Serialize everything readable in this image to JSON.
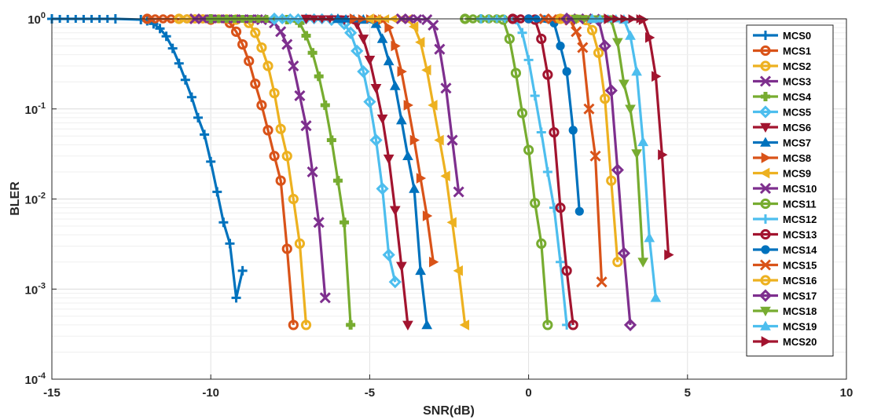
{
  "chart_data": {
    "type": "line",
    "xlabel": "SNR(dB)",
    "ylabel": "BLER",
    "xlim": [
      -15,
      10
    ],
    "ylim": [
      0.0001,
      1
    ],
    "yscale": "log",
    "grid": true,
    "legend_position": "top-right",
    "x_ticks": [
      "-15",
      "-10",
      "-5",
      "0",
      "5",
      "10"
    ],
    "y_ticks": [
      {
        "base": "10",
        "exp": "0"
      },
      {
        "base": "10",
        "exp": "-1"
      },
      {
        "base": "10",
        "exp": "-2"
      },
      {
        "base": "10",
        "exp": "-3"
      },
      {
        "base": "10",
        "exp": "-4"
      }
    ],
    "series": [
      {
        "name": "MCS0",
        "color": "#0072BD",
        "marker": "plus",
        "x": [
          -15,
          -13,
          -12.2,
          -12,
          -11.8,
          -11.6,
          -11.4,
          -11.2,
          -11.0,
          -10.8,
          -10.6,
          -10.4,
          -10.2,
          -10.0,
          -9.8,
          -9.6,
          -9.4,
          -9.2,
          -9.0
        ],
        "y": [
          1,
          1,
          0.98,
          0.95,
          0.88,
          0.78,
          0.64,
          0.47,
          0.32,
          0.21,
          0.135,
          0.08,
          0.052,
          0.026,
          0.012,
          0.0055,
          0.0032,
          0.0008,
          0.0016
        ]
      },
      {
        "name": "MCS1",
        "color": "#D95319",
        "marker": "circle",
        "x": [
          -12,
          -10,
          -9.4,
          -9.2,
          -9.0,
          -8.8,
          -8.6,
          -8.4,
          -8.2,
          -8.0,
          -7.8,
          -7.6,
          -7.4
        ],
        "y": [
          1,
          0.98,
          0.9,
          0.72,
          0.52,
          0.34,
          0.19,
          0.11,
          0.058,
          0.03,
          0.016,
          0.0028,
          0.0004
        ]
      },
      {
        "name": "MCS2",
        "color": "#EDB120",
        "marker": "circle",
        "x": [
          -11,
          -9.2,
          -8.8,
          -8.6,
          -8.4,
          -8.2,
          -8.0,
          -7.8,
          -7.6,
          -7.4,
          -7.2,
          -7.0
        ],
        "y": [
          1,
          0.98,
          0.9,
          0.7,
          0.48,
          0.3,
          0.15,
          0.06,
          0.03,
          0.01,
          0.0032,
          0.0004
        ]
      },
      {
        "name": "MCS3",
        "color": "#7E2F8E",
        "marker": "x",
        "x": [
          -10.5,
          -8.4,
          -8.0,
          -7.8,
          -7.6,
          -7.4,
          -7.2,
          -7.0,
          -6.8,
          -6.6,
          -6.4
        ],
        "y": [
          1,
          0.98,
          0.9,
          0.72,
          0.52,
          0.3,
          0.14,
          0.065,
          0.02,
          0.0055,
          0.0008
        ]
      },
      {
        "name": "MCS4",
        "color": "#77AC30",
        "marker": "plus-bold",
        "x": [
          -10,
          -7.6,
          -7.2,
          -7.0,
          -6.8,
          -6.6,
          -6.4,
          -6.2,
          -6.0,
          -5.8,
          -5.6
        ],
        "y": [
          1,
          0.98,
          0.9,
          0.65,
          0.42,
          0.23,
          0.11,
          0.045,
          0.016,
          0.0055,
          0.0004
        ]
      },
      {
        "name": "MCS5",
        "color": "#4DBEEE",
        "marker": "diamond",
        "x": [
          -8,
          -6.2,
          -5.8,
          -5.6,
          -5.4,
          -5.2,
          -5.0,
          -4.8,
          -4.6,
          -4.4,
          -4.2
        ],
        "y": [
          1,
          0.98,
          0.88,
          0.7,
          0.44,
          0.26,
          0.12,
          0.045,
          0.013,
          0.0024,
          0.0012
        ]
      },
      {
        "name": "MCS6",
        "color": "#A2142F",
        "marker": "triangle-down",
        "x": [
          -7,
          -5.8,
          -5.4,
          -5.2,
          -5.0,
          -4.8,
          -4.6,
          -4.4,
          -4.2,
          -4.0,
          -3.8
        ],
        "y": [
          1,
          0.98,
          0.87,
          0.6,
          0.35,
          0.17,
          0.078,
          0.028,
          0.0075,
          0.0018,
          0.0004
        ]
      },
      {
        "name": "MCS7",
        "color": "#0072BD",
        "marker": "triangle-up",
        "x": [
          -6,
          -5.2,
          -4.8,
          -4.6,
          -4.4,
          -4.2,
          -4.0,
          -3.8,
          -3.6,
          -3.4,
          -3.2
        ],
        "y": [
          1,
          0.98,
          0.88,
          0.6,
          0.34,
          0.18,
          0.075,
          0.03,
          0.013,
          0.0016,
          0.0004
        ]
      },
      {
        "name": "MCS8",
        "color": "#D95319",
        "marker": "triangle-right",
        "x": [
          -5.5,
          -4.6,
          -4.4,
          -4.2,
          -4.0,
          -3.8,
          -3.6,
          -3.4,
          -3.2,
          -3.0
        ],
        "y": [
          1,
          0.98,
          0.8,
          0.5,
          0.26,
          0.11,
          0.045,
          0.017,
          0.0065,
          0.002
        ]
      },
      {
        "name": "MCS9",
        "color": "#EDB120",
        "marker": "triangle-left",
        "x": [
          -5,
          -3.8,
          -3.6,
          -3.4,
          -3.2,
          -3.0,
          -2.8,
          -2.6,
          -2.4,
          -2.2,
          -2.0
        ],
        "y": [
          1,
          0.98,
          0.82,
          0.55,
          0.27,
          0.11,
          0.045,
          0.018,
          0.0055,
          0.0016,
          0.0004
        ]
      },
      {
        "name": "MCS10",
        "color": "#7E2F8E",
        "marker": "x",
        "x": [
          -4,
          -3.2,
          -3.0,
          -2.8,
          -2.6,
          -2.4,
          -2.2
        ],
        "y": [
          1,
          0.98,
          0.85,
          0.46,
          0.17,
          0.045,
          0.012
        ]
      },
      {
        "name": "MCS11",
        "color": "#77AC30",
        "marker": "circle",
        "x": [
          -2,
          -0.8,
          -0.6,
          -0.4,
          -0.2,
          0.0,
          0.2,
          0.4,
          0.6
        ],
        "y": [
          1,
          0.98,
          0.6,
          0.25,
          0.09,
          0.035,
          0.009,
          0.0032,
          0.0004
        ]
      },
      {
        "name": "MCS12",
        "color": "#4DBEEE",
        "marker": "plus",
        "x": [
          -1.5,
          -0.4,
          -0.2,
          0.0,
          0.2,
          0.4,
          0.6,
          0.8,
          1.0,
          1.2
        ],
        "y": [
          1,
          0.98,
          0.7,
          0.35,
          0.14,
          0.055,
          0.02,
          0.008,
          0.002,
          0.0004
        ]
      },
      {
        "name": "MCS13",
        "color": "#A2142F",
        "marker": "circle",
        "x": [
          -0.5,
          0.2,
          0.4,
          0.6,
          0.8,
          1.0,
          1.2,
          1.4
        ],
        "y": [
          1,
          0.98,
          0.6,
          0.24,
          0.055,
          0.008,
          0.0016,
          0.0004
        ]
      },
      {
        "name": "MCS14",
        "color": "#0072BD",
        "marker": "circle-filled",
        "x": [
          0,
          0.8,
          1.0,
          1.2,
          1.4,
          1.6
        ],
        "y": [
          1,
          0.9,
          0.5,
          0.26,
          0.058,
          0.0073
        ]
      },
      {
        "name": "MCS15",
        "color": "#D95319",
        "marker": "x",
        "x": [
          0.5,
          1.3,
          1.5,
          1.7,
          1.9,
          2.1,
          2.3
        ],
        "y": [
          1,
          0.97,
          0.72,
          0.48,
          0.1,
          0.03,
          0.0012
        ]
      },
      {
        "name": "MCS16",
        "color": "#EDB120",
        "marker": "circle",
        "x": [
          1,
          1.8,
          2.0,
          2.2,
          2.4,
          2.6,
          2.8
        ],
        "y": [
          1,
          0.97,
          0.75,
          0.42,
          0.13,
          0.016,
          0.002
        ]
      },
      {
        "name": "MCS17",
        "color": "#7E2F8E",
        "marker": "diamond",
        "x": [
          1.2,
          2.2,
          2.4,
          2.6,
          2.8,
          3.0,
          3.2
        ],
        "y": [
          1,
          0.97,
          0.5,
          0.16,
          0.021,
          0.0025,
          0.0004
        ]
      },
      {
        "name": "MCS18",
        "color": "#77AC30",
        "marker": "triangle-down",
        "x": [
          1.5,
          2.6,
          2.8,
          3.0,
          3.2,
          3.4,
          3.6
        ],
        "y": [
          1,
          0.98,
          0.55,
          0.19,
          0.1,
          0.032,
          0.002
        ]
      },
      {
        "name": "MCS19",
        "color": "#4DBEEE",
        "marker": "triangle-up",
        "x": [
          2,
          3.0,
          3.2,
          3.4,
          3.6,
          3.8,
          4.0
        ],
        "y": [
          1,
          0.98,
          0.65,
          0.26,
          0.043,
          0.0037,
          0.0008
        ]
      },
      {
        "name": "MCS20",
        "color": "#A2142F",
        "marker": "triangle-right",
        "x": [
          2.5,
          3.6,
          3.8,
          4.0,
          4.2,
          4.4
        ],
        "y": [
          1,
          0.98,
          0.62,
          0.23,
          0.031,
          0.0024
        ]
      }
    ]
  }
}
